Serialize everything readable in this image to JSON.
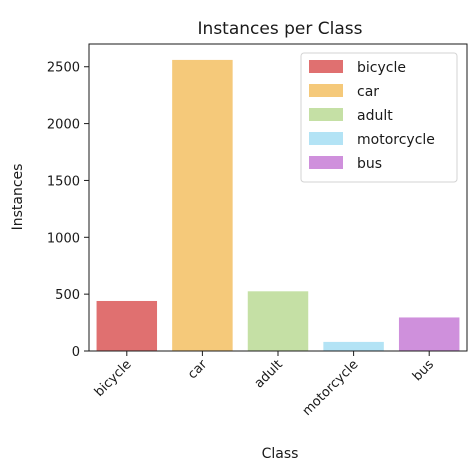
{
  "chart_data": {
    "type": "bar",
    "title": "Instances per Class",
    "xlabel": "Class",
    "ylabel": "Instances",
    "categories": [
      "bicycle",
      "car",
      "adult",
      "motorcycle",
      "bus"
    ],
    "values": [
      440,
      2560,
      525,
      80,
      295
    ],
    "colors": [
      "#e07070",
      "#f5c97a",
      "#c5e0a5",
      "#b3e3f5",
      "#cf90dc"
    ],
    "ylim": [
      0,
      2700
    ],
    "yticks": [
      0,
      500,
      1000,
      1500,
      2000,
      2500
    ],
    "ytick_labels": [
      "0",
      "500",
      "1000",
      "1500",
      "2000",
      "2500"
    ],
    "legend": [
      "bicycle",
      "car",
      "adult",
      "motorcycle",
      "bus"
    ],
    "legend_position": "top-right",
    "grid": false
  }
}
